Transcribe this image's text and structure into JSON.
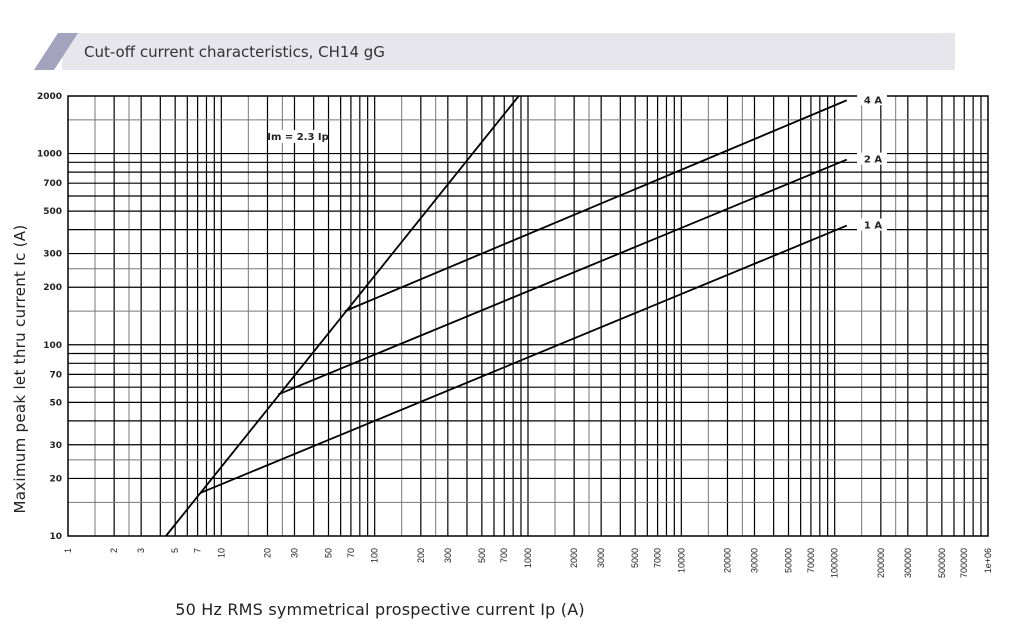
{
  "header": {
    "title": "Cut-off current characteristics, CH14 gG"
  },
  "chart_data": {
    "type": "line",
    "title": "Cut-off current characteristics, CH14 gG",
    "xlabel": "50 Hz RMS symmetrical prospective current Ip (A)",
    "ylabel": "Maximum peak let thru current Ic (A)",
    "xscale": "log",
    "yscale": "log",
    "xlim": [
      1,
      1000000
    ],
    "ylim": [
      10,
      2000
    ],
    "grid": true,
    "xticks": [
      1,
      2,
      3,
      5,
      7,
      10,
      20,
      30,
      50,
      70,
      100,
      200,
      300,
      500,
      700,
      1000,
      2000,
      3000,
      5000,
      7000,
      10000,
      20000,
      30000,
      50000,
      70000,
      100000,
      200000,
      300000,
      500000,
      700000,
      1000000
    ],
    "xtick_labels": [
      "1",
      "2",
      "3",
      "5",
      "7",
      "10",
      "20",
      "30",
      "50",
      "70",
      "100",
      "200",
      "300",
      "500",
      "700",
      "1000",
      "2000",
      "3000",
      "5000",
      "7000",
      "10000",
      "20000",
      "30000",
      "50000",
      "70000",
      "100000",
      "200000",
      "300000",
      "500000",
      "700000",
      "1e+06"
    ],
    "yticks": [
      10,
      20,
      30,
      50,
      70,
      100,
      200,
      300,
      500,
      700,
      1000,
      2000
    ],
    "ytick_labels": [
      "10",
      "20",
      "30",
      "50",
      "70",
      "100",
      "200",
      "300",
      "500",
      "700",
      "1000",
      "2000"
    ],
    "annotation": "Im = 2.3 Ip",
    "series": [
      {
        "name": "Im = 2.3 Ip",
        "x": [
          4.35,
          870
        ],
        "y": [
          10,
          2000
        ]
      },
      {
        "name": "4 A",
        "x": [
          64,
          120000
        ],
        "y": [
          150,
          1900
        ]
      },
      {
        "name": "2 A",
        "x": [
          23.5,
          120000
        ],
        "y": [
          55,
          930
        ]
      },
      {
        "name": "1 A",
        "x": [
          7.3,
          120000
        ],
        "y": [
          16.8,
          420
        ]
      }
    ],
    "line_color": "#000000"
  },
  "colors": {
    "band": "#e6e6ec",
    "slant": "#a3a3bd",
    "grid": "#000000"
  }
}
